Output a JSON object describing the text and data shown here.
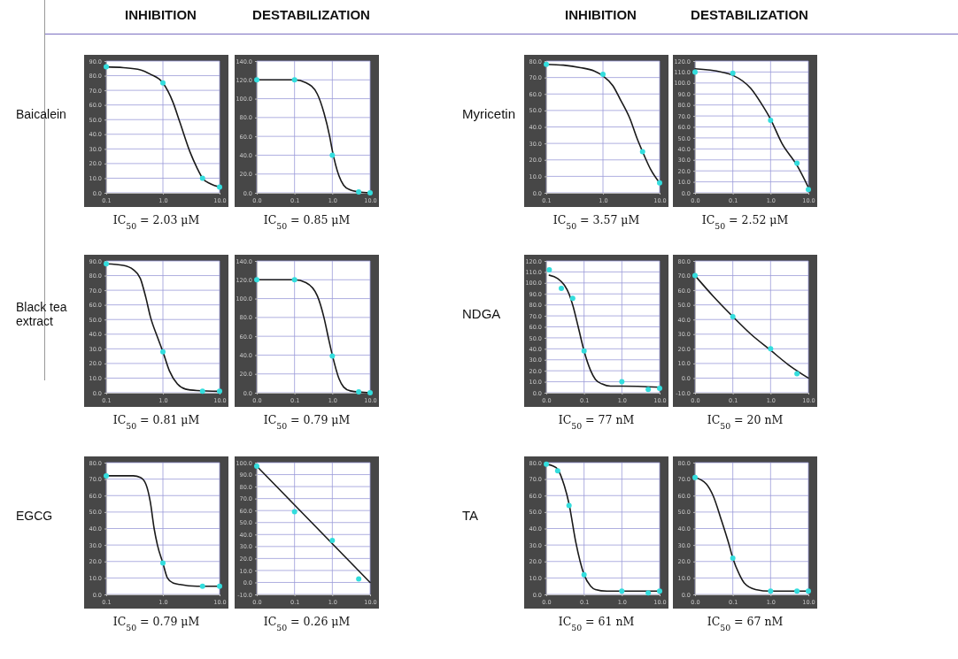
{
  "chart_data": [
    {
      "type": "line",
      "title": "INHIBITION",
      "ylabel": "Baicalein",
      "xlabel": "IC$_{50}$ = 2.03 μM",
      "log": "x",
      "grid": true,
      "xlim": [
        0.1,
        10
      ],
      "xticks": [
        {
          "value": 0.1,
          "label": "0.1"
        },
        {
          "value": 1,
          "label": "1.0"
        },
        {
          "value": 10,
          "label": "10.0"
        }
      ],
      "ylim": [
        0,
        90
      ],
      "yticks": [
        {
          "value": 0,
          "label": "0.0"
        },
        {
          "value": 10,
          "label": "10.0"
        },
        {
          "value": 20,
          "label": "20.0"
        },
        {
          "value": 30,
          "label": "30.0"
        },
        {
          "value": 40,
          "label": "40.0"
        },
        {
          "value": 50,
          "label": "50.0"
        },
        {
          "value": 60,
          "label": "60.0"
        },
        {
          "value": 70,
          "label": "70.0"
        },
        {
          "value": 80,
          "label": "80.0"
        },
        {
          "value": 90,
          "label": "90.0"
        }
      ],
      "series": [
        {
          "type": "line",
          "color": "#1a1a1a",
          "x": [
            0.1,
            0.2,
            0.4,
            0.6,
            1,
            1.5,
            2,
            3,
            4,
            5,
            7,
            10
          ],
          "values": [
            86,
            85.5,
            84,
            81,
            75,
            62,
            48,
            28,
            17,
            10,
            6,
            4
          ]
        },
        {
          "type": "scatter",
          "marker": "circle",
          "color": "#33dddd",
          "x": [
            0.1,
            1,
            5,
            10
          ],
          "values": [
            86,
            75,
            10,
            4
          ]
        }
      ]
    },
    {
      "type": "line",
      "title": "DESTABILIZATION",
      "xlabel": "IC$_{50}$ = 0.85 μM",
      "log": "x",
      "grid": true,
      "xlim": [
        0.01,
        10
      ],
      "xticks": [
        {
          "value": 0.01,
          "label": "0.0"
        },
        {
          "value": 0.1,
          "label": "0.1"
        },
        {
          "value": 1,
          "label": "1.0"
        },
        {
          "value": 10,
          "label": "10.0"
        }
      ],
      "ylim": [
        0,
        140
      ],
      "yticks": [
        {
          "value": 0,
          "label": "0.0"
        },
        {
          "value": 20,
          "label": "20.0"
        },
        {
          "value": 40,
          "label": "40.0"
        },
        {
          "value": 60,
          "label": "60.0"
        },
        {
          "value": 80,
          "label": "80.0"
        },
        {
          "value": 100,
          "label": "100.0"
        },
        {
          "value": 120,
          "label": "120.0"
        },
        {
          "value": 140,
          "label": "140.0"
        }
      ],
      "series": [
        {
          "type": "line",
          "color": "#1a1a1a",
          "x": [
            0.01,
            0.1,
            0.2,
            0.4,
            0.6,
            0.85,
            1,
            1.5,
            2,
            3,
            5,
            10
          ],
          "values": [
            120,
            120,
            117,
            105,
            85,
            60,
            45,
            18,
            8,
            3,
            1,
            0
          ]
        },
        {
          "type": "scatter",
          "marker": "circle",
          "color": "#33dddd",
          "x": [
            0.01,
            0.1,
            1,
            5,
            10
          ],
          "values": [
            120,
            120,
            40,
            1,
            0
          ]
        }
      ]
    },
    {
      "type": "line",
      "title": "INHIBITION",
      "ylabel": "Myricetin",
      "xlabel": "IC$_{50}$ = 3.57 μM",
      "log": "x",
      "grid": true,
      "xlim": [
        0.1,
        10
      ],
      "xticks": [
        {
          "value": 0.1,
          "label": "0.1"
        },
        {
          "value": 1,
          "label": "1.0"
        },
        {
          "value": 10,
          "label": "10.0"
        }
      ],
      "ylim": [
        0,
        80
      ],
      "yticks": [
        {
          "value": 0,
          "label": "0.0"
        },
        {
          "value": 10,
          "label": "10.0"
        },
        {
          "value": 20,
          "label": "20.0"
        },
        {
          "value": 30,
          "label": "30.0"
        },
        {
          "value": 40,
          "label": "40.0"
        },
        {
          "value": 50,
          "label": "50.0"
        },
        {
          "value": 60,
          "label": "60.0"
        },
        {
          "value": 70,
          "label": "70.0"
        },
        {
          "value": 80,
          "label": "80.0"
        }
      ],
      "series": [
        {
          "type": "line",
          "color": "#1a1a1a",
          "x": [
            0.1,
            0.2,
            0.4,
            0.7,
            1,
            1.5,
            2,
            3,
            4,
            5,
            7,
            10
          ],
          "values": [
            78,
            77.5,
            76,
            74,
            71,
            65,
            57,
            45,
            33,
            25,
            14,
            6
          ]
        },
        {
          "type": "scatter",
          "marker": "circle",
          "color": "#33dddd",
          "x": [
            0.1,
            1,
            5,
            10
          ],
          "values": [
            78,
            72,
            25,
            6
          ]
        }
      ]
    },
    {
      "type": "line",
      "title": "DESTABILIZATION",
      "xlabel": "IC$_{50}$ = 2.52 μM",
      "log": "x",
      "grid": true,
      "xlim": [
        0.01,
        10
      ],
      "xticks": [
        {
          "value": 0.01,
          "label": "0.0"
        },
        {
          "value": 0.1,
          "label": "0.1"
        },
        {
          "value": 1,
          "label": "1.0"
        },
        {
          "value": 10,
          "label": "10.0"
        }
      ],
      "ylim": [
        0,
        120
      ],
      "yticks": [
        {
          "value": 0,
          "label": "0.0"
        },
        {
          "value": 10,
          "label": "10.0"
        },
        {
          "value": 20,
          "label": "20.0"
        },
        {
          "value": 30,
          "label": "30.0"
        },
        {
          "value": 40,
          "label": "40.0"
        },
        {
          "value": 50,
          "label": "50.0"
        },
        {
          "value": 60,
          "label": "60.0"
        },
        {
          "value": 70,
          "label": "70.0"
        },
        {
          "value": 80,
          "label": "80.0"
        },
        {
          "value": 90,
          "label": "90.0"
        },
        {
          "value": 100,
          "label": "100.0"
        },
        {
          "value": 110,
          "label": "110.0"
        },
        {
          "value": 120,
          "label": "120.0"
        }
      ],
      "series": [
        {
          "type": "line",
          "color": "#1a1a1a",
          "x": [
            0.01,
            0.05,
            0.1,
            0.3,
            0.6,
            1,
            2,
            5,
            10
          ],
          "values": [
            113,
            110,
            107,
            95,
            80,
            67,
            45,
            25,
            5
          ]
        },
        {
          "type": "scatter",
          "marker": "circle",
          "color": "#33dddd",
          "x": [
            0.01,
            0.1,
            1,
            5,
            10
          ],
          "values": [
            110,
            109,
            66,
            27,
            3
          ]
        }
      ]
    },
    {
      "type": "line",
      "ylabel": "Black tea extract",
      "xlabel": "IC$_{50}$ = 0.81 μM",
      "log": "x",
      "grid": true,
      "xlim": [
        0.1,
        10
      ],
      "xticks": [
        {
          "value": 0.1,
          "label": "0.1"
        },
        {
          "value": 1,
          "label": "1.0"
        },
        {
          "value": 10,
          "label": "10.0"
        }
      ],
      "ylim": [
        0,
        90
      ],
      "yticks": [
        {
          "value": 0,
          "label": "0.0"
        },
        {
          "value": 10,
          "label": "10.0"
        },
        {
          "value": 20,
          "label": "20.0"
        },
        {
          "value": 30,
          "label": "30.0"
        },
        {
          "value": 40,
          "label": "40.0"
        },
        {
          "value": 50,
          "label": "50.0"
        },
        {
          "value": 60,
          "label": "60.0"
        },
        {
          "value": 70,
          "label": "70.0"
        },
        {
          "value": 80,
          "label": "80.0"
        },
        {
          "value": 90,
          "label": "90.0"
        }
      ],
      "series": [
        {
          "type": "line",
          "color": "#1a1a1a",
          "x": [
            0.1,
            0.2,
            0.3,
            0.4,
            0.5,
            0.6,
            0.8,
            1,
            1.3,
            1.8,
            2.5,
            4,
            10
          ],
          "values": [
            88,
            87,
            84,
            78,
            65,
            52,
            38,
            28,
            15,
            6,
            2.5,
            1.5,
            1
          ]
        },
        {
          "type": "scatter",
          "marker": "circle",
          "color": "#33dddd",
          "x": [
            0.1,
            1,
            5,
            10
          ],
          "values": [
            88,
            28,
            1,
            1
          ]
        }
      ]
    },
    {
      "type": "line",
      "xlabel": "IC$_{50}$ = 0.79 μM",
      "log": "x",
      "grid": true,
      "xlim": [
        0.01,
        10
      ],
      "xticks": [
        {
          "value": 0.01,
          "label": "0.0"
        },
        {
          "value": 0.1,
          "label": "0.1"
        },
        {
          "value": 1,
          "label": "1.0"
        },
        {
          "value": 10,
          "label": "10.0"
        }
      ],
      "ylim": [
        0,
        140
      ],
      "yticks": [
        {
          "value": 0,
          "label": "0.0"
        },
        {
          "value": 20,
          "label": "20.0"
        },
        {
          "value": 40,
          "label": "40.0"
        },
        {
          "value": 60,
          "label": "60.0"
        },
        {
          "value": 80,
          "label": "80.0"
        },
        {
          "value": 100,
          "label": "100.0"
        },
        {
          "value": 120,
          "label": "120.0"
        },
        {
          "value": 140,
          "label": "140.0"
        }
      ],
      "series": [
        {
          "type": "line",
          "color": "#1a1a1a",
          "x": [
            0.01,
            0.1,
            0.2,
            0.4,
            0.6,
            0.8,
            1,
            1.5,
            2,
            3,
            10
          ],
          "values": [
            120,
            120,
            117,
            103,
            80,
            57,
            40,
            15,
            6,
            2,
            0
          ]
        },
        {
          "type": "scatter",
          "marker": "circle",
          "color": "#33dddd",
          "x": [
            0.01,
            0.1,
            1,
            5,
            10
          ],
          "values": [
            120,
            120,
            39,
            1,
            0
          ]
        }
      ]
    },
    {
      "type": "line",
      "ylabel": "NDGA",
      "xlabel": "IC$_{50}$ = 77 nM",
      "log": "x",
      "grid": true,
      "xlim": [
        0.01,
        10
      ],
      "xticks": [
        {
          "value": 0.01,
          "label": "0.0"
        },
        {
          "value": 0.1,
          "label": "0.1"
        },
        {
          "value": 1,
          "label": "1.0"
        },
        {
          "value": 10,
          "label": "10.0"
        }
      ],
      "ylim": [
        0,
        120
      ],
      "yticks": [
        {
          "value": 0,
          "label": "0.0"
        },
        {
          "value": 10,
          "label": "10.0"
        },
        {
          "value": 20,
          "label": "20.0"
        },
        {
          "value": 30,
          "label": "30.0"
        },
        {
          "value": 40,
          "label": "40.0"
        },
        {
          "value": 50,
          "label": "50.0"
        },
        {
          "value": 60,
          "label": "60.0"
        },
        {
          "value": 70,
          "label": "70.0"
        },
        {
          "value": 80,
          "label": "80.0"
        },
        {
          "value": 90,
          "label": "90.0"
        },
        {
          "value": 100,
          "label": "100.0"
        },
        {
          "value": 110,
          "label": "110.0"
        },
        {
          "value": 120,
          "label": "120.0"
        }
      ],
      "series": [
        {
          "type": "line",
          "color": "#1a1a1a",
          "x": [
            0.012,
            0.02,
            0.03,
            0.04,
            0.05,
            0.07,
            0.1,
            0.15,
            0.2,
            0.3,
            0.5,
            1,
            10
          ],
          "values": [
            107,
            104,
            98,
            90,
            80,
            60,
            38,
            20,
            12,
            8,
            6,
            6,
            5
          ]
        },
        {
          "type": "scatter",
          "marker": "circle",
          "color": "#33dddd",
          "x": [
            0.012,
            0.025,
            0.05,
            0.1,
            1,
            5,
            10
          ],
          "values": [
            112,
            95,
            86,
            38,
            10,
            3,
            4
          ]
        }
      ]
    },
    {
      "type": "line",
      "xlabel": "IC$_{50}$ = 20 nM",
      "log": "x",
      "grid": true,
      "xlim": [
        0.01,
        10
      ],
      "xticks": [
        {
          "value": 0.01,
          "label": "0.0"
        },
        {
          "value": 0.1,
          "label": "0.1"
        },
        {
          "value": 1,
          "label": "1.0"
        },
        {
          "value": 10,
          "label": "10.0"
        }
      ],
      "ylim": [
        -10,
        80
      ],
      "yticks": [
        {
          "value": -10,
          "label": "-10.0"
        },
        {
          "value": 0,
          "label": "0.0"
        },
        {
          "value": 10,
          "label": "10.0"
        },
        {
          "value": 20,
          "label": "20.0"
        },
        {
          "value": 30,
          "label": "30.0"
        },
        {
          "value": 40,
          "label": "40.0"
        },
        {
          "value": 50,
          "label": "50.0"
        },
        {
          "value": 60,
          "label": "60.0"
        },
        {
          "value": 70,
          "label": "70.0"
        },
        {
          "value": 80,
          "label": "80.0"
        }
      ],
      "series": [
        {
          "type": "line",
          "color": "#1a1a1a",
          "x": [
            0.01,
            0.03,
            0.1,
            0.3,
            1,
            3,
            10
          ],
          "values": [
            70,
            56,
            42,
            30,
            19,
            9,
            0
          ]
        },
        {
          "type": "scatter",
          "marker": "circle",
          "color": "#33dddd",
          "x": [
            0.01,
            0.1,
            1,
            5
          ],
          "values": [
            70,
            42,
            20,
            3
          ]
        }
      ]
    },
    {
      "type": "line",
      "ylabel": "EGCG",
      "xlabel": "IC$_{50}$ = 0.79 μM",
      "log": "x",
      "grid": true,
      "xlim": [
        0.1,
        10
      ],
      "xticks": [
        {
          "value": 0.1,
          "label": "0.1"
        },
        {
          "value": 1,
          "label": "1.0"
        },
        {
          "value": 10,
          "label": "10.0"
        }
      ],
      "ylim": [
        0,
        80
      ],
      "yticks": [
        {
          "value": 0,
          "label": "0.0"
        },
        {
          "value": 10,
          "label": "10.0"
        },
        {
          "value": 20,
          "label": "20.0"
        },
        {
          "value": 30,
          "label": "30.0"
        },
        {
          "value": 40,
          "label": "40.0"
        },
        {
          "value": 50,
          "label": "50.0"
        },
        {
          "value": 60,
          "label": "60.0"
        },
        {
          "value": 70,
          "label": "70.0"
        },
        {
          "value": 80,
          "label": "80.0"
        }
      ],
      "series": [
        {
          "type": "line",
          "color": "#1a1a1a",
          "x": [
            0.1,
            0.3,
            0.4,
            0.5,
            0.6,
            0.7,
            0.8,
            1,
            1.2,
            1.5,
            2,
            4,
            10
          ],
          "values": [
            72,
            72,
            71,
            67,
            56,
            40,
            30,
            19,
            10,
            7,
            6,
            5,
            5
          ]
        },
        {
          "type": "scatter",
          "marker": "circle",
          "color": "#33dddd",
          "x": [
            0.1,
            1,
            5,
            10
          ],
          "values": [
            72,
            19,
            5,
            5
          ]
        }
      ]
    },
    {
      "type": "line",
      "xlabel": "IC$_{50}$ = 0.26 μM",
      "log": "x",
      "grid": true,
      "xlim": [
        0.01,
        10
      ],
      "xticks": [
        {
          "value": 0.01,
          "label": "0.0"
        },
        {
          "value": 0.1,
          "label": "0.1"
        },
        {
          "value": 1,
          "label": "1.0"
        },
        {
          "value": 10,
          "label": "10.0"
        }
      ],
      "ylim": [
        -10,
        100
      ],
      "yticks": [
        {
          "value": -10,
          "label": "-10.0"
        },
        {
          "value": 0,
          "label": "0.0"
        },
        {
          "value": 10,
          "label": "10.0"
        },
        {
          "value": 20,
          "label": "20.0"
        },
        {
          "value": 30,
          "label": "30.0"
        },
        {
          "value": 40,
          "label": "40.0"
        },
        {
          "value": 50,
          "label": "50.0"
        },
        {
          "value": 60,
          "label": "60.0"
        },
        {
          "value": 70,
          "label": "70.0"
        },
        {
          "value": 80,
          "label": "80.0"
        },
        {
          "value": 90,
          "label": "90.0"
        },
        {
          "value": 100,
          "label": "100.0"
        }
      ],
      "series": [
        {
          "type": "line",
          "color": "#1a1a1a",
          "x": [
            0.01,
            10
          ],
          "values": [
            97,
            0
          ]
        },
        {
          "type": "scatter",
          "marker": "circle",
          "color": "#33dddd",
          "x": [
            0.01,
            0.1,
            1,
            5
          ],
          "values": [
            97,
            59,
            35,
            3
          ]
        }
      ]
    },
    {
      "type": "line",
      "ylabel": "TA",
      "xlabel": "IC$_{50}$ = 61 nM",
      "log": "x",
      "grid": true,
      "xlim": [
        0.01,
        10
      ],
      "xticks": [
        {
          "value": 0.01,
          "label": "0.0"
        },
        {
          "value": 0.1,
          "label": "0.1"
        },
        {
          "value": 1,
          "label": "1.0"
        },
        {
          "value": 10,
          "label": "10.0"
        }
      ],
      "ylim": [
        0,
        80
      ],
      "yticks": [
        {
          "value": 0,
          "label": "0.0"
        },
        {
          "value": 10,
          "label": "10.0"
        },
        {
          "value": 20,
          "label": "20.0"
        },
        {
          "value": 30,
          "label": "30.0"
        },
        {
          "value": 40,
          "label": "40.0"
        },
        {
          "value": 50,
          "label": "50.0"
        },
        {
          "value": 60,
          "label": "60.0"
        },
        {
          "value": 70,
          "label": "70.0"
        },
        {
          "value": 80,
          "label": "80.0"
        }
      ],
      "series": [
        {
          "type": "line",
          "color": "#1a1a1a",
          "x": [
            0.01,
            0.015,
            0.02,
            0.03,
            0.04,
            0.06,
            0.1,
            0.15,
            0.2,
            0.4,
            10
          ],
          "values": [
            79,
            78,
            76,
            66,
            55,
            32,
            12,
            5,
            3,
            2,
            2
          ]
        },
        {
          "type": "scatter",
          "marker": "circle",
          "color": "#33dddd",
          "x": [
            0.01,
            0.02,
            0.04,
            0.1,
            1,
            5,
            10
          ],
          "values": [
            79,
            75,
            54,
            12,
            2,
            1,
            2
          ]
        }
      ]
    },
    {
      "type": "line",
      "xlabel": "IC$_{50}$ = 67 nM",
      "log": "x",
      "grid": true,
      "xlim": [
        0.01,
        10
      ],
      "xticks": [
        {
          "value": 0.01,
          "label": "0.0"
        },
        {
          "value": 0.1,
          "label": "0.1"
        },
        {
          "value": 1,
          "label": "1.0"
        },
        {
          "value": 10,
          "label": "10.0"
        }
      ],
      "ylim": [
        0,
        80
      ],
      "yticks": [
        {
          "value": 0,
          "label": "0.0"
        },
        {
          "value": 10,
          "label": "10.0"
        },
        {
          "value": 20,
          "label": "20.0"
        },
        {
          "value": 30,
          "label": "30.0"
        },
        {
          "value": 40,
          "label": "40.0"
        },
        {
          "value": 50,
          "label": "50.0"
        },
        {
          "value": 60,
          "label": "60.0"
        },
        {
          "value": 70,
          "label": "70.0"
        },
        {
          "value": 80,
          "label": "80.0"
        }
      ],
      "series": [
        {
          "type": "line",
          "color": "#1a1a1a",
          "x": [
            0.01,
            0.02,
            0.03,
            0.05,
            0.08,
            0.1,
            0.15,
            0.2,
            0.4,
            1,
            10
          ],
          "values": [
            71,
            67,
            60,
            45,
            30,
            22,
            12,
            7,
            3,
            2,
            2
          ]
        },
        {
          "type": "scatter",
          "marker": "circle",
          "color": "#33dddd",
          "x": [
            0.01,
            0.1,
            1,
            5,
            10
          ],
          "values": [
            71,
            22,
            2,
            2,
            2
          ]
        }
      ]
    }
  ]
}
